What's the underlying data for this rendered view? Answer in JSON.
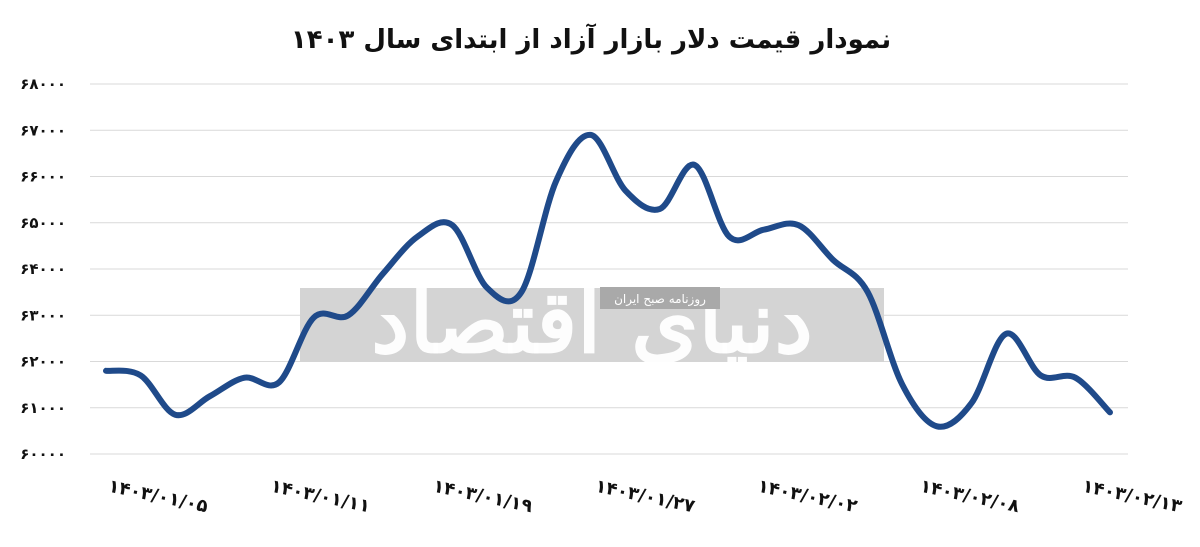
{
  "chart_data": {
    "type": "line",
    "title": "نمودار قیمت دلار بازار آزاد از ابتدای سال ۱۴۰۳",
    "xlabel": "",
    "ylabel": "",
    "ylim": [
      60000,
      68000
    ],
    "y_ticks": [
      60000,
      61000,
      62000,
      63000,
      64000,
      65000,
      66000,
      67000,
      68000
    ],
    "y_tick_labels": [
      "۶۰۰۰۰",
      "۶۱۰۰۰",
      "۶۲۰۰۰",
      "۶۳۰۰۰",
      "۶۴۰۰۰",
      "۶۵۰۰۰",
      "۶۶۰۰۰",
      "۶۷۰۰۰",
      "۶۸۰۰۰"
    ],
    "x_tick_labels": [
      "۱۴۰۳/۰۱/۰۵",
      "۱۴۰۳/۰۱/۱۱",
      "۱۴۰۳/۰۱/۱۹",
      "۱۴۰۳/۰۱/۲۷",
      "۱۴۰۳/۰۲/۰۲",
      "۱۴۰۳/۰۲/۰۸",
      "۱۴۰۳/۰۲/۱۳"
    ],
    "grid": true,
    "legend": "none",
    "series": [
      {
        "color": "#1f4a8a",
        "values": [
          61800,
          61700,
          60850,
          61250,
          61650,
          61550,
          62950,
          63000,
          63900,
          64700,
          64950,
          63600,
          63500,
          65900,
          66900,
          65700,
          65300,
          66250,
          64700,
          64850,
          64950,
          64200,
          63500,
          61500,
          60600,
          61100,
          62600,
          61700,
          61650,
          60900
        ]
      }
    ]
  },
  "watermark": {
    "name": "دنیای اقتصاد",
    "subtitle": "روزنامه صبح ایران"
  }
}
